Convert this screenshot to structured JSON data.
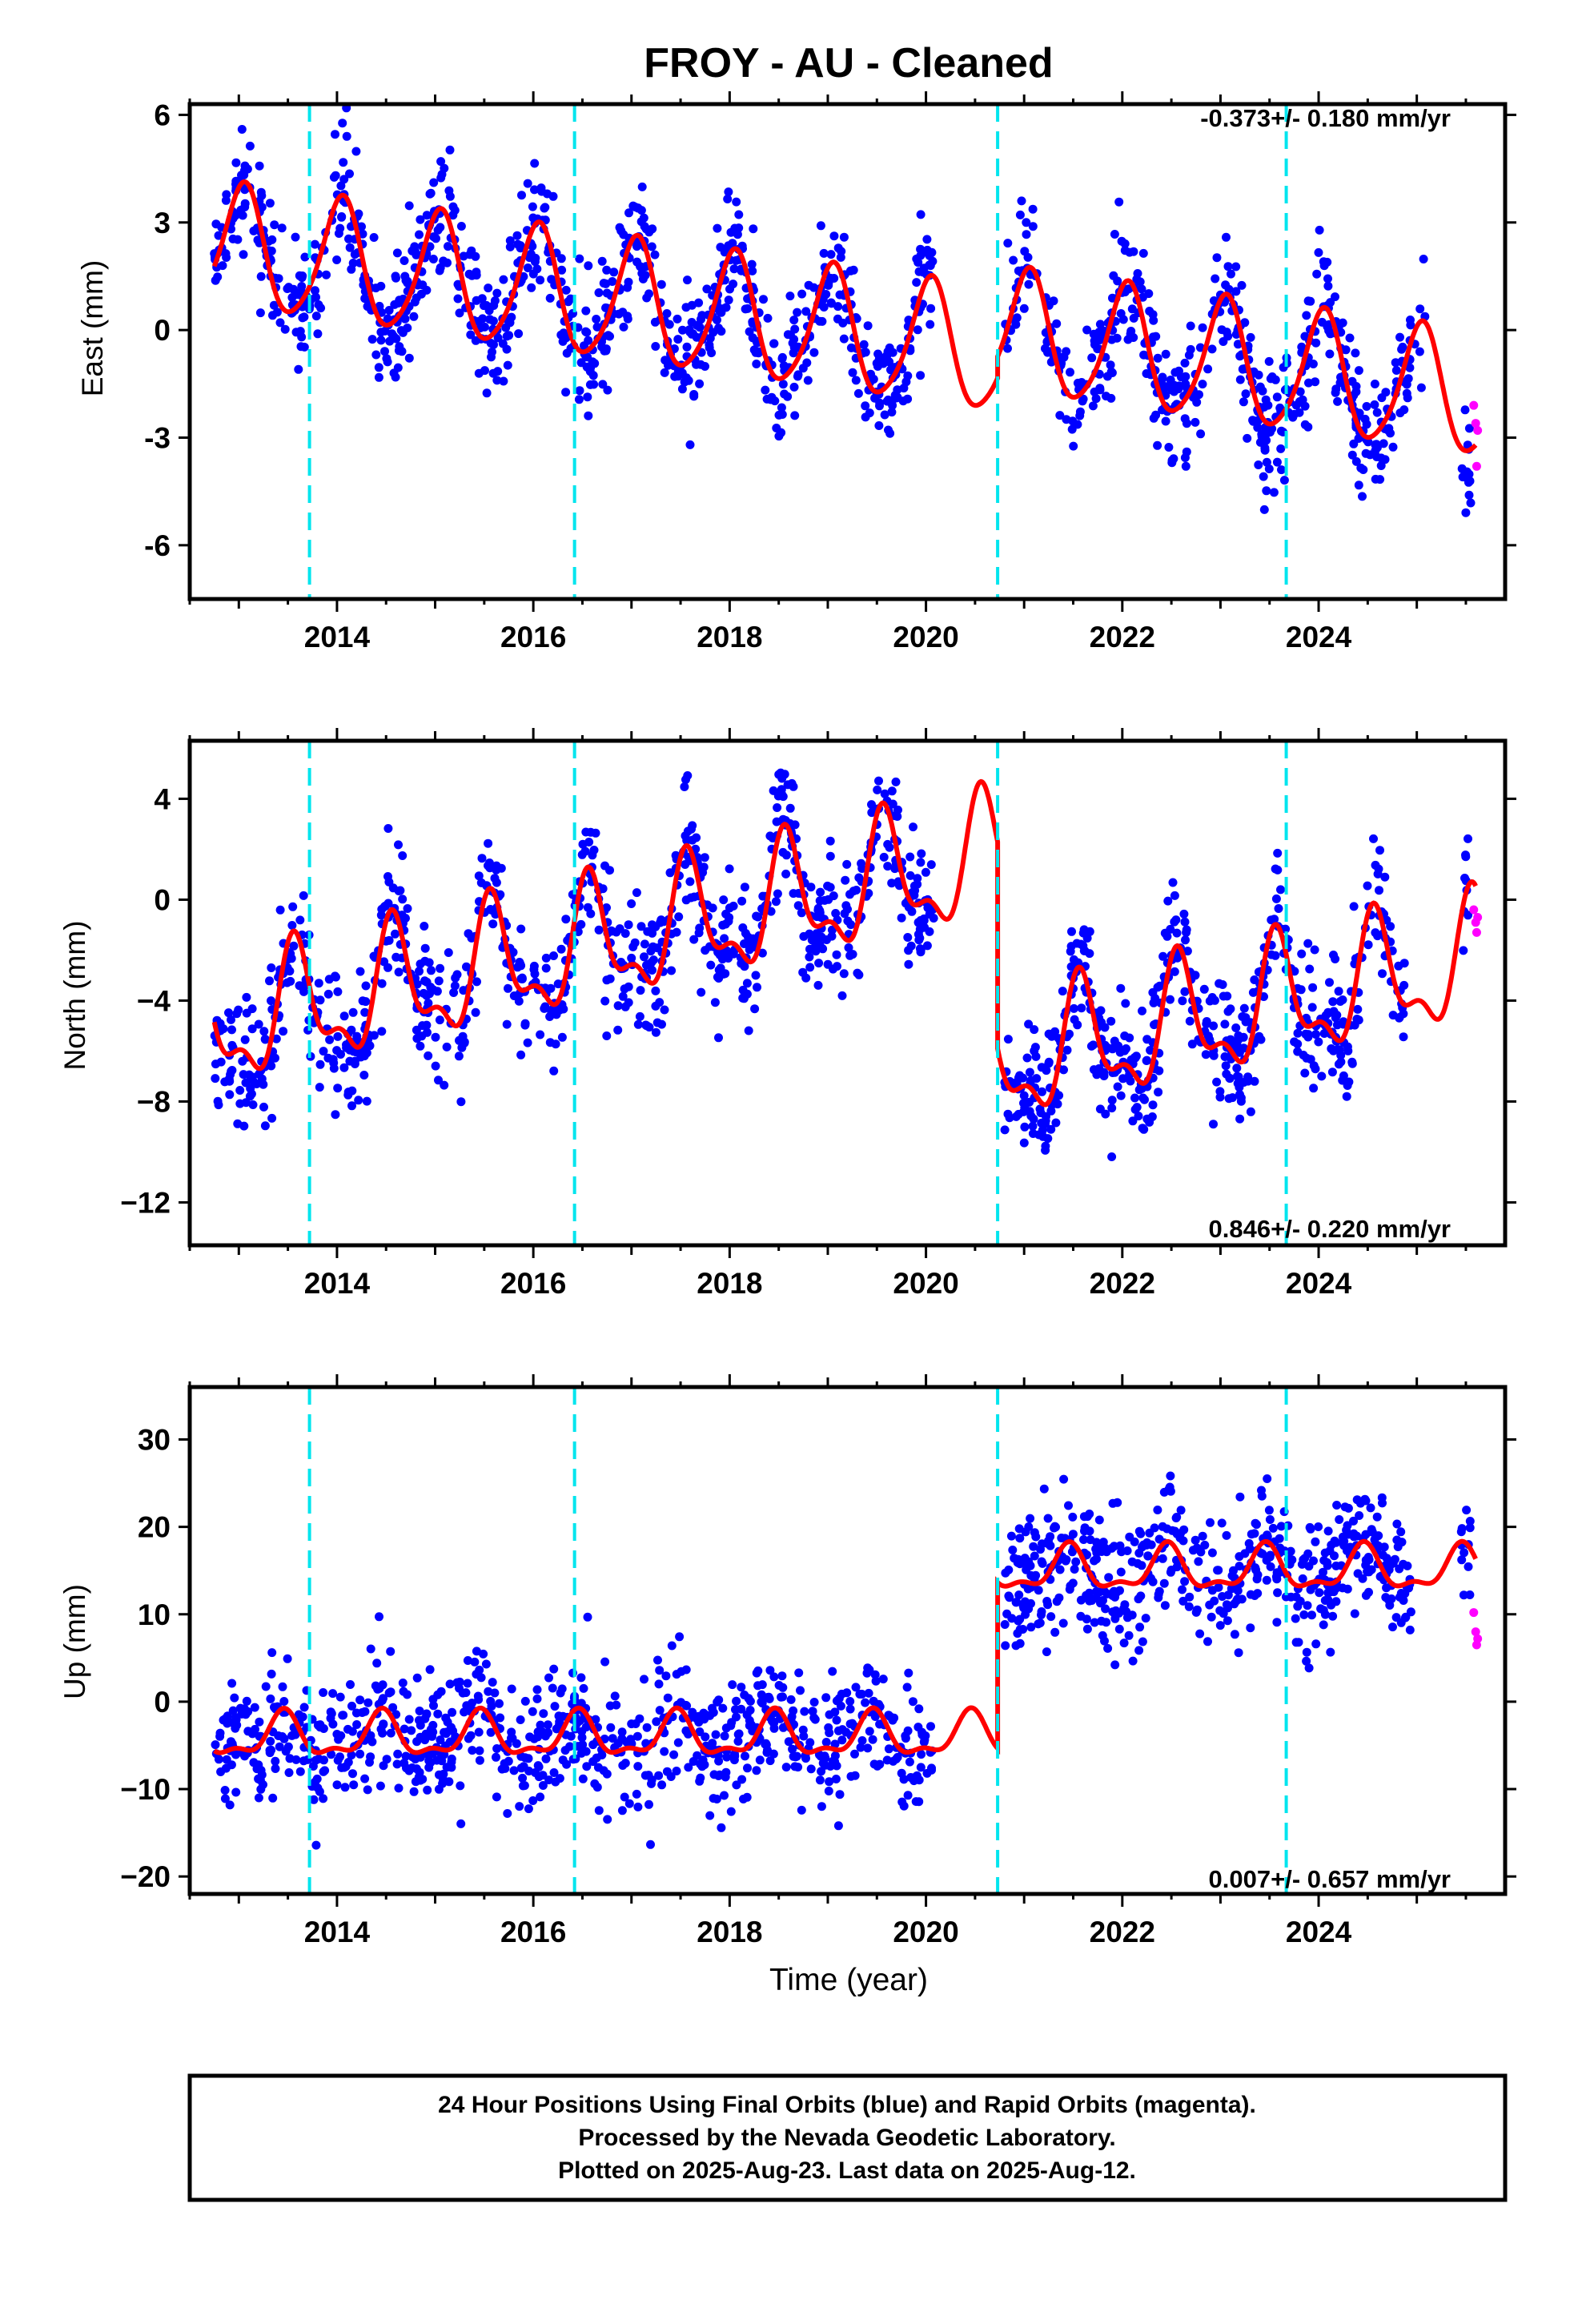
{
  "title": "FROY  - AU - Cleaned",
  "colors": {
    "final_orbits": "#0000ff",
    "rapid_orbits": "#ff00ff",
    "model": "#ff0000",
    "offsets": "#00e5ee",
    "frame": "#000000"
  },
  "xlabel": "Time (year)",
  "x_tick_labels": [
    "2014",
    "2016",
    "2018",
    "2020",
    "2022",
    "2024"
  ],
  "footer": {
    "line1": "24 Hour Positions Using Final Orbits (blue) and Rapid Orbits (magenta).",
    "line2": "Processed by the Nevada Geodetic Laboratory.",
    "line3": "Plotted on 2025-Aug-23. Last data on 2025-Aug-12."
  },
  "chart_data": [
    {
      "type": "scatter",
      "component": "east",
      "ylabel": "East (mm)",
      "rate_label": "-0.373+/- 0.180 mm/yr",
      "xlim": [
        2012.5,
        2025.9
      ],
      "ylim": [
        -7.5,
        6.3
      ],
      "yticks": [
        -6,
        -3,
        0,
        3,
        6
      ],
      "y_tick_labels": [
        "-6",
        "-3",
        "0",
        "3",
        "6"
      ],
      "offsets": [
        2013.72,
        2016.42,
        2020.73,
        2023.67
      ],
      "data_range": [
        2012.75,
        2025.55
      ],
      "gap": [
        2020.08,
        2020.8
      ],
      "secondary_gap": [
        2025.1,
        2025.45
      ],
      "spread": 0.9,
      "model": {
        "base": 0.0,
        "trend": -0.373,
        "t0": 2019.0,
        "annual": 1.7,
        "annual_phase": 1.3,
        "semiannual": 0.25,
        "semiannual_phase": 0.4,
        "steps": [
          {
            "t": 2020.73,
            "dy": 0.6
          }
        ]
      },
      "rapid_points": [
        [
          2025.58,
          -2.1
        ],
        [
          2025.6,
          -2.6
        ],
        [
          2025.61,
          -3.8
        ],
        [
          2025.62,
          -2.8
        ]
      ]
    },
    {
      "type": "scatter",
      "component": "north",
      "ylabel": "North (mm)",
      "rate_label": "0.846+/- 0.220 mm/yr",
      "xlim": [
        2012.5,
        2025.9
      ],
      "ylim": [
        -13.7,
        6.3
      ],
      "yticks": [
        -12,
        -8,
        -4,
        0,
        4
      ],
      "y_tick_labels": [
        "−12",
        "−8",
        "−4",
        "0",
        "4"
      ],
      "offsets": [
        2013.72,
        2016.42,
        2020.73,
        2023.67
      ],
      "data_range": [
        2012.75,
        2025.55
      ],
      "gap": [
        2020.08,
        2020.8
      ],
      "secondary_gap": [
        2024.9,
        2025.45
      ],
      "spread": 1.3,
      "model": {
        "base": 0.2,
        "trend": 0.846,
        "t0": 2019.0,
        "annual": 2.2,
        "annual_phase": 4.2,
        "semiannual": 1.0,
        "semiannual_phase": 1.0,
        "steps": [
          {
            "t": 2020.73,
            "dy": -8.2
          }
        ]
      },
      "rapid_points": [
        [
          2025.58,
          -0.4
        ],
        [
          2025.6,
          -0.9
        ],
        [
          2025.61,
          -1.3
        ],
        [
          2025.62,
          -0.7
        ]
      ]
    },
    {
      "type": "scatter",
      "component": "up",
      "ylabel": "Up (mm)",
      "rate_label": "0.007+/- 0.657 mm/yr",
      "xlim": [
        2012.5,
        2025.9
      ],
      "ylim": [
        -22,
        36
      ],
      "yticks": [
        -20,
        -10,
        0,
        10,
        20,
        30
      ],
      "y_tick_labels": [
        "−20",
        "−10",
        "0",
        "10",
        "20",
        "30"
      ],
      "offsets": [
        2013.72,
        2016.42,
        2020.73,
        2023.67
      ],
      "data_range": [
        2012.75,
        2025.55
      ],
      "gap": [
        2020.08,
        2020.8
      ],
      "secondary_gap": [
        2024.95,
        2025.45
      ],
      "spread": 3.8,
      "model": {
        "base": -4.0,
        "trend": 0.007,
        "t0": 2019.0,
        "annual": 2.3,
        "annual_phase": 5.0,
        "semiannual": 1.0,
        "semiannual_phase": 2.0,
        "steps": [
          {
            "t": 2020.73,
            "dy": 19.0
          }
        ]
      },
      "rapid_points": [
        [
          2025.58,
          10.2
        ],
        [
          2025.6,
          8.0
        ],
        [
          2025.61,
          6.5
        ],
        [
          2025.62,
          7.2
        ]
      ]
    }
  ]
}
